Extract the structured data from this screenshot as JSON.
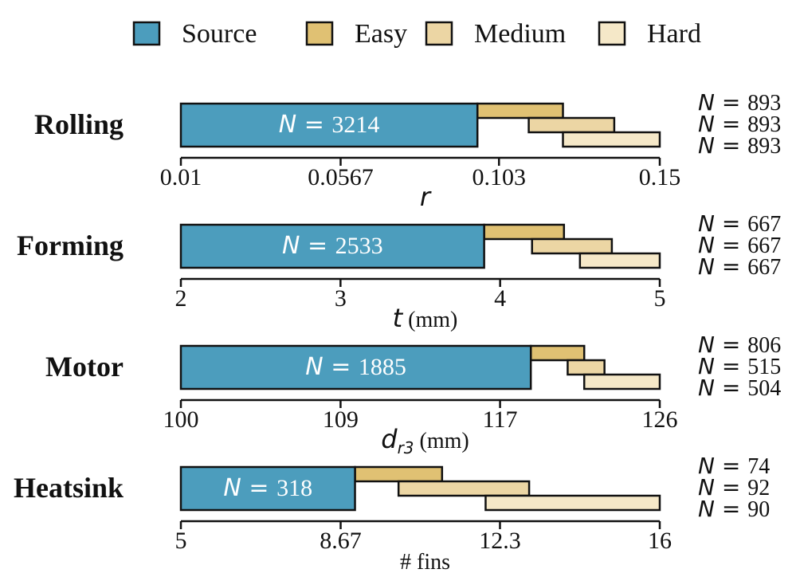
{
  "legend": {
    "items": [
      {
        "label": "Source",
        "color": "#4c9dbd"
      },
      {
        "label": "Easy",
        "color": "#e0c173"
      },
      {
        "label": "Medium",
        "color": "#ecd6a4"
      },
      {
        "label": "Hard",
        "color": "#f5e8c8"
      }
    ]
  },
  "chart_data": [
    {
      "type": "range-bar",
      "title": "Rolling",
      "xlabel": "r",
      "xlabel_unit": "",
      "xlim": [
        0.01,
        0.15
      ],
      "ticks": [
        {
          "value": 0.01,
          "label": "0.01"
        },
        {
          "value": 0.0567,
          "label": "0.0567"
        },
        {
          "value": 0.103,
          "label": "0.103"
        },
        {
          "value": 0.15,
          "label": "0.15"
        }
      ],
      "source": {
        "start": 0.01,
        "end": 0.0967,
        "label": "N = 3214",
        "n": "3214"
      },
      "targets": [
        {
          "name": "Easy",
          "start": 0.0967,
          "end": 0.1217,
          "label": "N = 893",
          "n": "893"
        },
        {
          "name": "Medium",
          "start": 0.1117,
          "end": 0.1367,
          "label": "N = 893",
          "n": "893"
        },
        {
          "name": "Hard",
          "start": 0.1217,
          "end": 0.15,
          "label": "N = 893",
          "n": "893"
        }
      ]
    },
    {
      "type": "range-bar",
      "title": "Forming",
      "xlabel": "t",
      "xlabel_unit": " (mm)",
      "xlim": [
        2,
        5
      ],
      "ticks": [
        {
          "value": 2,
          "label": "2"
        },
        {
          "value": 3,
          "label": "3"
        },
        {
          "value": 4,
          "label": "4"
        },
        {
          "value": 5,
          "label": "5"
        }
      ],
      "source": {
        "start": 2,
        "end": 3.9,
        "label": "N = 2533",
        "n": "2533"
      },
      "targets": [
        {
          "name": "Easy",
          "start": 3.9,
          "end": 4.4,
          "label": "N = 667",
          "n": "667"
        },
        {
          "name": "Medium",
          "start": 4.2,
          "end": 4.7,
          "label": "N = 667",
          "n": "667"
        },
        {
          "name": "Hard",
          "start": 4.5,
          "end": 5.0,
          "label": "N = 667",
          "n": "667"
        }
      ]
    },
    {
      "type": "range-bar",
      "title": "Motor",
      "xlabel": "d",
      "xlabel_sub": "r3",
      "xlabel_unit": " (mm)",
      "xlim": [
        100,
        126
      ],
      "ticks": [
        {
          "value": 100,
          "label": "100"
        },
        {
          "value": 108.67,
          "label": "109"
        },
        {
          "value": 117.33,
          "label": "117"
        },
        {
          "value": 126,
          "label": "126"
        }
      ],
      "source": {
        "start": 100,
        "end": 119,
        "label": "N = 1885",
        "n": "1885"
      },
      "targets": [
        {
          "name": "Easy",
          "start": 119,
          "end": 121.9,
          "label": "N = 806",
          "n": "806"
        },
        {
          "name": "Medium",
          "start": 121,
          "end": 123,
          "label": "N = 515",
          "n": "515"
        },
        {
          "name": "Hard",
          "start": 121.9,
          "end": 126,
          "label": "N = 504",
          "n": "504"
        }
      ]
    },
    {
      "type": "range-bar",
      "title": "Heatsink",
      "xlabel": "# fins",
      "xlabel_unit": "",
      "xlim": [
        5,
        16
      ],
      "ticks": [
        {
          "value": 5,
          "label": "5"
        },
        {
          "value": 8.67,
          "label": "8.67"
        },
        {
          "value": 12.33,
          "label": "12.3"
        },
        {
          "value": 16,
          "label": "16"
        }
      ],
      "source": {
        "start": 5,
        "end": 9,
        "label": "N = 318",
        "n": "318"
      },
      "targets": [
        {
          "name": "Easy",
          "start": 9,
          "end": 11,
          "label": "N = 74",
          "n": "74"
        },
        {
          "name": "Medium",
          "start": 10,
          "end": 13,
          "label": "N = 92",
          "n": "92"
        },
        {
          "name": "Hard",
          "start": 12,
          "end": 16,
          "label": "N = 90",
          "n": "90"
        }
      ]
    }
  ]
}
